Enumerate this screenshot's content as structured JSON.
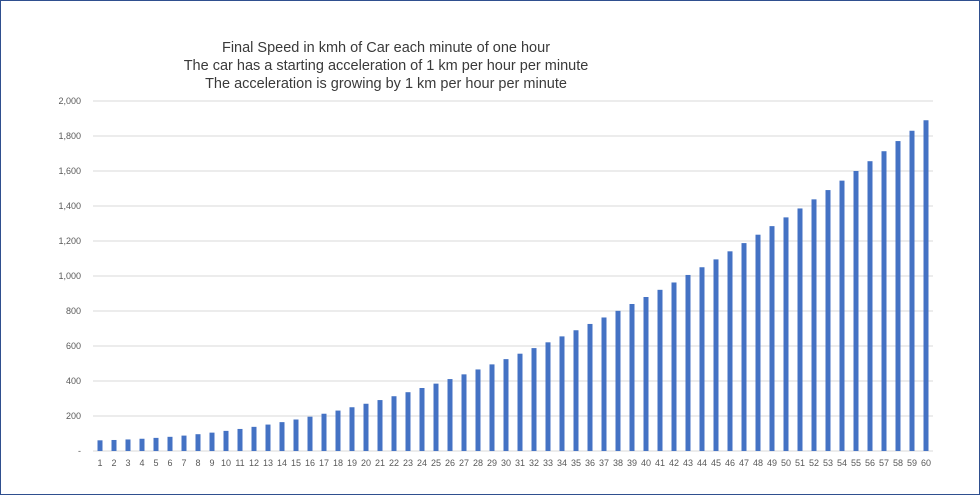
{
  "chart_data": {
    "type": "bar",
    "title_lines": [
      "Final Speed in kmh of Car each minute of one hour",
      "The car has a starting acceleration of 1 km per hour per minute",
      "The acceleration is growing by 1 km per hour per minute"
    ],
    "xlabel": "",
    "ylabel": "",
    "categories": [
      "1",
      "2",
      "3",
      "4",
      "5",
      "6",
      "7",
      "8",
      "9",
      "10",
      "11",
      "12",
      "13",
      "14",
      "15",
      "16",
      "17",
      "18",
      "19",
      "20",
      "21",
      "22",
      "23",
      "24",
      "25",
      "26",
      "27",
      "28",
      "29",
      "30",
      "31",
      "32",
      "33",
      "34",
      "35",
      "36",
      "37",
      "38",
      "39",
      "40",
      "41",
      "42",
      "43",
      "44",
      "45",
      "46",
      "47",
      "48",
      "49",
      "50",
      "51",
      "52",
      "53",
      "54",
      "55",
      "56",
      "57",
      "58",
      "59",
      "60"
    ],
    "values": [
      61,
      63,
      66,
      70,
      75,
      81,
      88,
      96,
      105,
      115,
      126,
      138,
      151,
      165,
      180,
      196,
      213,
      231,
      250,
      270,
      291,
      313,
      336,
      360,
      385,
      411,
      438,
      466,
      495,
      525,
      556,
      588,
      621,
      655,
      690,
      726,
      763,
      801,
      840,
      880,
      921,
      963,
      1006,
      1050,
      1095,
      1141,
      1188,
      1236,
      1285,
      1335,
      1386,
      1438,
      1491,
      1545,
      1600,
      1656,
      1713,
      1771,
      1830,
      1890
    ],
    "ylim": [
      0,
      2000
    ],
    "yticks": [
      0,
      200,
      400,
      600,
      800,
      1000,
      1200,
      1400,
      1600,
      1800,
      2000
    ],
    "ytick_labels": [
      "-",
      "200",
      "400",
      "600",
      "800",
      "1,000",
      "1,200",
      "1,400",
      "1,600",
      "1,800",
      "2,000"
    ],
    "grid": true,
    "legend": "none",
    "colors": {
      "bar": "#4472c4",
      "grid": "#d9d9d9",
      "text": "#595959",
      "frame": "#2f4f8f"
    }
  }
}
